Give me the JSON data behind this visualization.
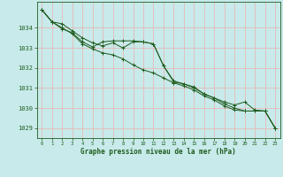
{
  "title": "",
  "xlabel": "Graphe pression niveau de la mer (hPa)",
  "ylabel": "",
  "xlim": [
    -0.5,
    23.5
  ],
  "ylim": [
    1028.5,
    1035.3
  ],
  "yticks": [
    1029,
    1030,
    1031,
    1032,
    1033,
    1034
  ],
  "xticks": [
    0,
    1,
    2,
    3,
    4,
    5,
    6,
    7,
    8,
    9,
    10,
    11,
    12,
    13,
    14,
    15,
    16,
    17,
    18,
    19,
    20,
    21,
    22,
    23
  ],
  "background_color": "#c8eaea",
  "grid_color": "#e8b8b8",
  "line_color": "#1e5c1e",
  "series1": [
    1034.9,
    1034.3,
    1034.2,
    1033.85,
    1033.5,
    1033.25,
    1033.1,
    1033.25,
    1033.0,
    1033.3,
    1033.3,
    1033.2,
    1032.1,
    1031.3,
    1031.2,
    1031.0,
    1030.7,
    1030.5,
    1030.2,
    1030.0,
    1029.85,
    1029.85,
    1029.85,
    1029.0
  ],
  "series2": [
    1034.9,
    1034.3,
    1034.0,
    1033.7,
    1033.2,
    1032.95,
    1032.75,
    1032.65,
    1032.45,
    1032.15,
    1031.9,
    1031.75,
    1031.5,
    1031.25,
    1031.1,
    1030.9,
    1030.6,
    1030.4,
    1030.1,
    1029.9,
    1029.85,
    1029.85,
    1029.85,
    1029.0
  ],
  "series3": [
    1034.9,
    1034.3,
    1033.95,
    1033.75,
    1033.3,
    1033.05,
    1033.3,
    1033.35,
    1033.35,
    1033.35,
    1033.3,
    1033.2,
    1032.1,
    1031.35,
    1031.2,
    1031.05,
    1030.7,
    1030.5,
    1030.3,
    1030.15,
    1030.3,
    1029.9,
    1029.85,
    1029.0
  ]
}
